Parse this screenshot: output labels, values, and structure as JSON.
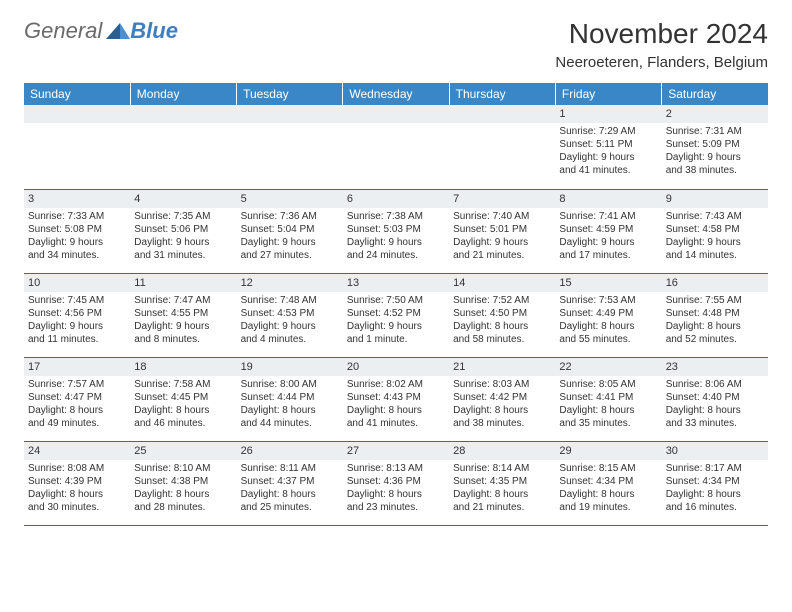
{
  "brand": {
    "part1": "General",
    "part2": "Blue"
  },
  "title": "November 2024",
  "location": "Neeroeteren, Flanders, Belgium",
  "colors": {
    "header_bg": "#3a87c7",
    "header_text": "#ffffff",
    "daynum_bg": "#eceff1",
    "row_border": "#3a6a9a",
    "text": "#333333",
    "brand_gray": "#6a6a6a",
    "brand_blue": "#3f7fbf"
  },
  "day_headers": [
    "Sunday",
    "Monday",
    "Tuesday",
    "Wednesday",
    "Thursday",
    "Friday",
    "Saturday"
  ],
  "weeks": [
    [
      null,
      null,
      null,
      null,
      null,
      {
        "n": "1",
        "sunrise": "7:29 AM",
        "sunset": "5:11 PM",
        "dl1": "Daylight: 9 hours",
        "dl2": "and 41 minutes."
      },
      {
        "n": "2",
        "sunrise": "7:31 AM",
        "sunset": "5:09 PM",
        "dl1": "Daylight: 9 hours",
        "dl2": "and 38 minutes."
      }
    ],
    [
      {
        "n": "3",
        "sunrise": "7:33 AM",
        "sunset": "5:08 PM",
        "dl1": "Daylight: 9 hours",
        "dl2": "and 34 minutes."
      },
      {
        "n": "4",
        "sunrise": "7:35 AM",
        "sunset": "5:06 PM",
        "dl1": "Daylight: 9 hours",
        "dl2": "and 31 minutes."
      },
      {
        "n": "5",
        "sunrise": "7:36 AM",
        "sunset": "5:04 PM",
        "dl1": "Daylight: 9 hours",
        "dl2": "and 27 minutes."
      },
      {
        "n": "6",
        "sunrise": "7:38 AM",
        "sunset": "5:03 PM",
        "dl1": "Daylight: 9 hours",
        "dl2": "and 24 minutes."
      },
      {
        "n": "7",
        "sunrise": "7:40 AM",
        "sunset": "5:01 PM",
        "dl1": "Daylight: 9 hours",
        "dl2": "and 21 minutes."
      },
      {
        "n": "8",
        "sunrise": "7:41 AM",
        "sunset": "4:59 PM",
        "dl1": "Daylight: 9 hours",
        "dl2": "and 17 minutes."
      },
      {
        "n": "9",
        "sunrise": "7:43 AM",
        "sunset": "4:58 PM",
        "dl1": "Daylight: 9 hours",
        "dl2": "and 14 minutes."
      }
    ],
    [
      {
        "n": "10",
        "sunrise": "7:45 AM",
        "sunset": "4:56 PM",
        "dl1": "Daylight: 9 hours",
        "dl2": "and 11 minutes."
      },
      {
        "n": "11",
        "sunrise": "7:47 AM",
        "sunset": "4:55 PM",
        "dl1": "Daylight: 9 hours",
        "dl2": "and 8 minutes."
      },
      {
        "n": "12",
        "sunrise": "7:48 AM",
        "sunset": "4:53 PM",
        "dl1": "Daylight: 9 hours",
        "dl2": "and 4 minutes."
      },
      {
        "n": "13",
        "sunrise": "7:50 AM",
        "sunset": "4:52 PM",
        "dl1": "Daylight: 9 hours",
        "dl2": "and 1 minute."
      },
      {
        "n": "14",
        "sunrise": "7:52 AM",
        "sunset": "4:50 PM",
        "dl1": "Daylight: 8 hours",
        "dl2": "and 58 minutes."
      },
      {
        "n": "15",
        "sunrise": "7:53 AM",
        "sunset": "4:49 PM",
        "dl1": "Daylight: 8 hours",
        "dl2": "and 55 minutes."
      },
      {
        "n": "16",
        "sunrise": "7:55 AM",
        "sunset": "4:48 PM",
        "dl1": "Daylight: 8 hours",
        "dl2": "and 52 minutes."
      }
    ],
    [
      {
        "n": "17",
        "sunrise": "7:57 AM",
        "sunset": "4:47 PM",
        "dl1": "Daylight: 8 hours",
        "dl2": "and 49 minutes."
      },
      {
        "n": "18",
        "sunrise": "7:58 AM",
        "sunset": "4:45 PM",
        "dl1": "Daylight: 8 hours",
        "dl2": "and 46 minutes."
      },
      {
        "n": "19",
        "sunrise": "8:00 AM",
        "sunset": "4:44 PM",
        "dl1": "Daylight: 8 hours",
        "dl2": "and 44 minutes."
      },
      {
        "n": "20",
        "sunrise": "8:02 AM",
        "sunset": "4:43 PM",
        "dl1": "Daylight: 8 hours",
        "dl2": "and 41 minutes."
      },
      {
        "n": "21",
        "sunrise": "8:03 AM",
        "sunset": "4:42 PM",
        "dl1": "Daylight: 8 hours",
        "dl2": "and 38 minutes."
      },
      {
        "n": "22",
        "sunrise": "8:05 AM",
        "sunset": "4:41 PM",
        "dl1": "Daylight: 8 hours",
        "dl2": "and 35 minutes."
      },
      {
        "n": "23",
        "sunrise": "8:06 AM",
        "sunset": "4:40 PM",
        "dl1": "Daylight: 8 hours",
        "dl2": "and 33 minutes."
      }
    ],
    [
      {
        "n": "24",
        "sunrise": "8:08 AM",
        "sunset": "4:39 PM",
        "dl1": "Daylight: 8 hours",
        "dl2": "and 30 minutes."
      },
      {
        "n": "25",
        "sunrise": "8:10 AM",
        "sunset": "4:38 PM",
        "dl1": "Daylight: 8 hours",
        "dl2": "and 28 minutes."
      },
      {
        "n": "26",
        "sunrise": "8:11 AM",
        "sunset": "4:37 PM",
        "dl1": "Daylight: 8 hours",
        "dl2": "and 25 minutes."
      },
      {
        "n": "27",
        "sunrise": "8:13 AM",
        "sunset": "4:36 PM",
        "dl1": "Daylight: 8 hours",
        "dl2": "and 23 minutes."
      },
      {
        "n": "28",
        "sunrise": "8:14 AM",
        "sunset": "4:35 PM",
        "dl1": "Daylight: 8 hours",
        "dl2": "and 21 minutes."
      },
      {
        "n": "29",
        "sunrise": "8:15 AM",
        "sunset": "4:34 PM",
        "dl1": "Daylight: 8 hours",
        "dl2": "and 19 minutes."
      },
      {
        "n": "30",
        "sunrise": "8:17 AM",
        "sunset": "4:34 PM",
        "dl1": "Daylight: 8 hours",
        "dl2": "and 16 minutes."
      }
    ]
  ],
  "labels": {
    "sunrise": "Sunrise: ",
    "sunset": "Sunset: "
  }
}
